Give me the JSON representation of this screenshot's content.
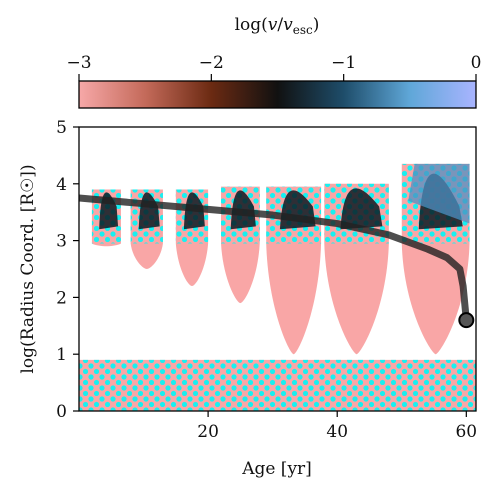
{
  "chart_data": {
    "type": "heatmap",
    "title": "",
    "xlabel": "Age [yr]",
    "ylabel": "log(Radius Coord. [R☉])",
    "xlim": [
      0,
      61.5
    ],
    "ylim": [
      0,
      5
    ],
    "x_ticks": [
      20,
      40,
      60
    ],
    "y_ticks": [
      0,
      1,
      2,
      3,
      4,
      5
    ],
    "grid": false,
    "colorbar": {
      "label": "log(v/v_esc)",
      "label_parts": {
        "pre": "log(",
        "v": "v",
        "slash": "/",
        "vesc": "v",
        "sub": "esc",
        "post": ")"
      },
      "range": [
        -3,
        0
      ],
      "ticks": [
        -3,
        -2,
        -1,
        0
      ],
      "tick_labels": [
        "−3",
        "−2",
        "−1",
        "0"
      ],
      "colors": [
        "#f7a8a8",
        "#c46a5a",
        "#6b2a12",
        "#111111",
        "#1e4d6a",
        "#5fa7d8",
        "#a9b4ff"
      ]
    },
    "pulsation_episodes": [
      {
        "x_start": 2.0,
        "x_end": 6.5,
        "r_low": 2.9,
        "r_high": 3.9
      },
      {
        "x_start": 8.0,
        "x_end": 13.0,
        "r_low": 2.5,
        "r_high": 3.9
      },
      {
        "x_start": 15.0,
        "x_end": 20.0,
        "r_low": 2.2,
        "r_high": 3.9
      },
      {
        "x_start": 22.0,
        "x_end": 28.0,
        "r_low": 1.9,
        "r_high": 3.95
      },
      {
        "x_start": 29.0,
        "x_end": 37.5,
        "r_low": 1.0,
        "r_high": 3.95
      },
      {
        "x_start": 38.0,
        "x_end": 48.0,
        "r_low": 1.0,
        "r_high": 4.0
      },
      {
        "x_start": 50.0,
        "x_end": 60.5,
        "r_low": 1.0,
        "r_high": 4.35
      }
    ],
    "convective_core": {
      "r_low": 0.0,
      "r_high": 0.9
    },
    "photosphere_radius": {
      "x": [
        0,
        10,
        20,
        30,
        40,
        48,
        54,
        57,
        59,
        59.5,
        60.0
      ],
      "y": [
        3.75,
        3.65,
        3.55,
        3.45,
        3.3,
        3.1,
        2.85,
        2.7,
        2.5,
        2.2,
        1.6
      ]
    },
    "end_marker": {
      "x": 60.0,
      "y": 1.6
    }
  }
}
